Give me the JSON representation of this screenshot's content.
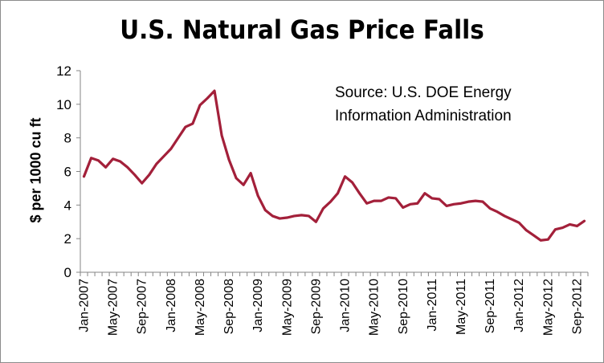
{
  "chart_data": {
    "type": "line",
    "title": "U.S. Natural Gas Price Falls",
    "xlabel": "",
    "ylabel": "$ per 1000 cu ft",
    "annotation": [
      "Source:  U.S. DOE Energy",
      "Information Administration"
    ],
    "ylim": [
      0,
      12
    ],
    "yticks": [
      0,
      2,
      4,
      6,
      8,
      10,
      12
    ],
    "xticks": [
      "Jan-2007",
      "May-2007",
      "Sep-2007",
      "Jan-2008",
      "May-2008",
      "Sep-2008",
      "Jan-2009",
      "May-2009",
      "Sep-2009",
      "Jan-2010",
      "May-2010",
      "Sep-2010",
      "Jan-2011",
      "May-2011",
      "Sep-2011",
      "Jan-2012",
      "May-2012",
      "Sep-2012"
    ],
    "grid": false,
    "line_color": "#a3203a",
    "x": [
      "Jan-2007",
      "Feb-2007",
      "Mar-2007",
      "Apr-2007",
      "May-2007",
      "Jun-2007",
      "Jul-2007",
      "Aug-2007",
      "Sep-2007",
      "Oct-2007",
      "Nov-2007",
      "Dec-2007",
      "Jan-2008",
      "Feb-2008",
      "Mar-2008",
      "Apr-2008",
      "May-2008",
      "Jun-2008",
      "Jul-2008",
      "Aug-2008",
      "Sep-2008",
      "Oct-2008",
      "Nov-2008",
      "Dec-2008",
      "Jan-2009",
      "Feb-2009",
      "Mar-2009",
      "Apr-2009",
      "May-2009",
      "Jun-2009",
      "Jul-2009",
      "Aug-2009",
      "Sep-2009",
      "Oct-2009",
      "Nov-2009",
      "Dec-2009",
      "Jan-2010",
      "Feb-2010",
      "Mar-2010",
      "Apr-2010",
      "May-2010",
      "Jun-2010",
      "Jul-2010",
      "Aug-2010",
      "Sep-2010",
      "Oct-2010",
      "Nov-2010",
      "Dec-2010",
      "Jan-2011",
      "Feb-2011",
      "Mar-2011",
      "Apr-2011",
      "May-2011",
      "Jun-2011",
      "Jul-2011",
      "Aug-2011",
      "Sep-2011",
      "Oct-2011",
      "Nov-2011",
      "Dec-2011",
      "Jan-2012",
      "Feb-2012",
      "Mar-2012",
      "Apr-2012",
      "May-2012",
      "Jun-2012",
      "Jul-2012",
      "Aug-2012",
      "Sep-2012",
      "Oct-2012"
    ],
    "series": [
      {
        "values": [
          5.7,
          6.8,
          6.65,
          6.25,
          6.75,
          6.6,
          6.25,
          5.8,
          5.3,
          5.8,
          6.45,
          6.9,
          7.35,
          8.0,
          8.65,
          8.85,
          9.95,
          10.35,
          10.8,
          8.15,
          6.7,
          5.6,
          5.2,
          5.9,
          4.55,
          3.7,
          3.35,
          3.2,
          3.25,
          3.35,
          3.4,
          3.35,
          3.0,
          3.8,
          4.2,
          4.7,
          5.7,
          5.35,
          4.7,
          4.1,
          4.25,
          4.25,
          4.45,
          4.4,
          3.85,
          4.05,
          4.1,
          4.7,
          4.4,
          4.35,
          3.95,
          4.05,
          4.1,
          4.2,
          4.25,
          4.2,
          3.8,
          3.6,
          3.35,
          3.15,
          2.95,
          2.5,
          2.2,
          1.9,
          1.95,
          2.55,
          2.65,
          2.85,
          2.75,
          3.05
        ]
      }
    ]
  }
}
